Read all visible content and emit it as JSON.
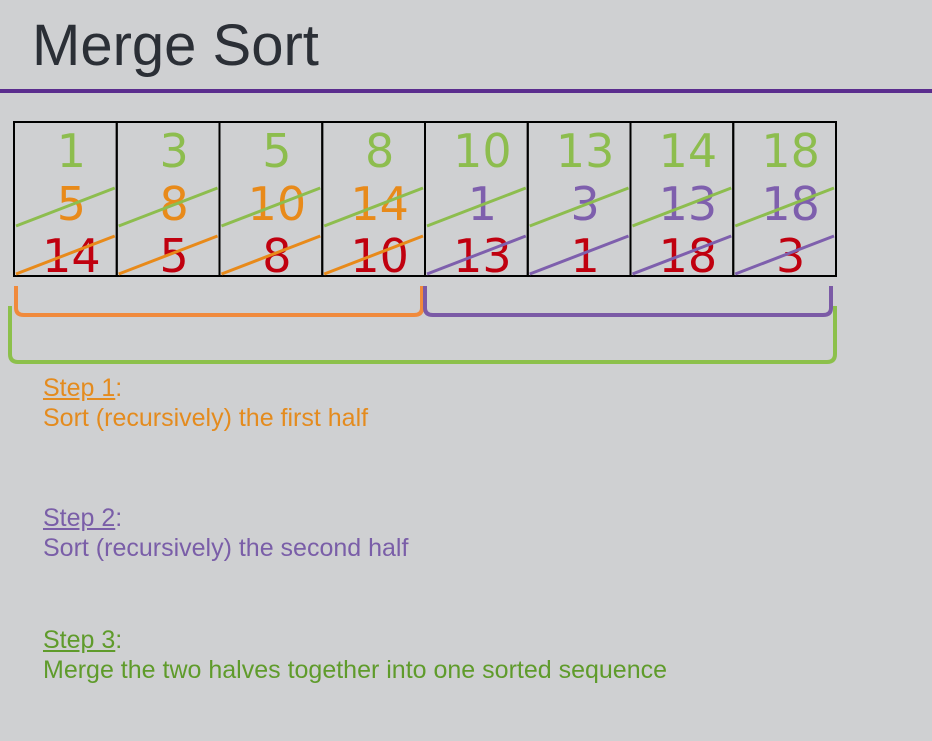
{
  "title": "Merge Sort",
  "colors": {
    "title": "#2b2f36",
    "rule": "#5b2d8e",
    "green": "#8dbd4e",
    "orange": "#e88a1a",
    "red": "#c0000f",
    "purple": "#7e5fad",
    "bracket_orange": "#f08a3c",
    "bracket_purple": "#7b5aa6",
    "bracket_green": "#8cc04b"
  },
  "cells": [
    {
      "top": "1",
      "middle": "5",
      "bottom": "14"
    },
    {
      "top": "3",
      "middle": "8",
      "bottom": "5"
    },
    {
      "top": "5",
      "middle": "10",
      "bottom": "8"
    },
    {
      "top": "8",
      "middle": "14",
      "bottom": "10"
    },
    {
      "top": "10",
      "middle": "1",
      "bottom": "13"
    },
    {
      "top": "13",
      "middle": "3",
      "bottom": "1"
    },
    {
      "top": "14",
      "middle": "13",
      "bottom": "18"
    },
    {
      "top": "18",
      "middle": "18",
      "bottom": "3"
    }
  ],
  "steps": [
    {
      "heading": "Step 1",
      "colon": ":",
      "text": "Sort (recursively) the first half"
    },
    {
      "heading": "Step 2",
      "colon": ":",
      "text": "Sort (recursively) the second half"
    },
    {
      "heading": "Step 3",
      "colon": ":",
      "text": "Merge the two halves together into one sorted sequence"
    }
  ]
}
